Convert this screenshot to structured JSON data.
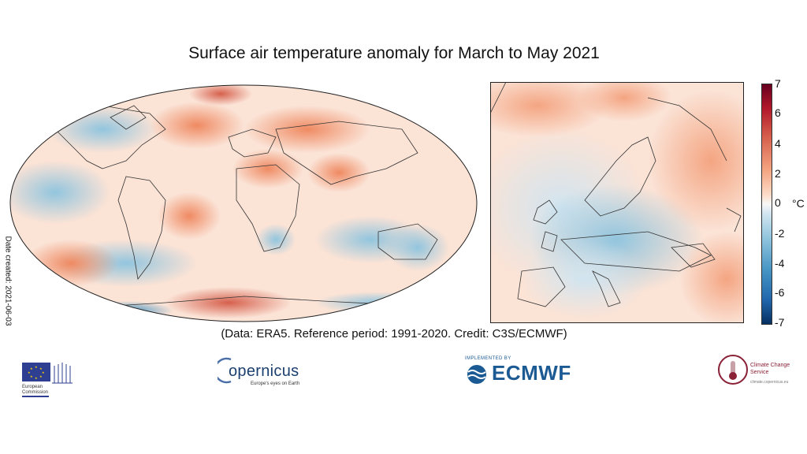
{
  "title": "Surface air temperature anomaly for March to May 2021",
  "date_created": "Date created: 2021-06-03",
  "credit": "(Data: ERA5.  Reference period: 1991-2020.  Credit: C3S/ECMWF)",
  "colorbar": {
    "unit": "°C",
    "ticks": [
      "7",
      "6",
      "4",
      "2",
      "0",
      "-2",
      "-4",
      "-6",
      "-7"
    ],
    "range": [
      -7,
      7
    ],
    "colors": [
      "#67001f",
      "#b2182b",
      "#d6604d",
      "#f4a582",
      "#fddbc7",
      "#f7f7f7",
      "#d1e5f0",
      "#92c5de",
      "#4393c3",
      "#2166ac",
      "#053061"
    ]
  },
  "logos": {
    "ec": "European Commission",
    "copernicus": "opernicus",
    "copernicus_sub": "Europe's eyes on Earth",
    "ecmwf_small": "IMPLEMENTED BY",
    "ecmwf": "ECMWF",
    "ccs": "Climate Change Service",
    "ccs_sub": "climate.copernicus.eu"
  },
  "icons": [
    "eu-flag-icon",
    "copernicus-logo-icon",
    "ecmwf-logo-icon",
    "thermometer-icon"
  ]
}
